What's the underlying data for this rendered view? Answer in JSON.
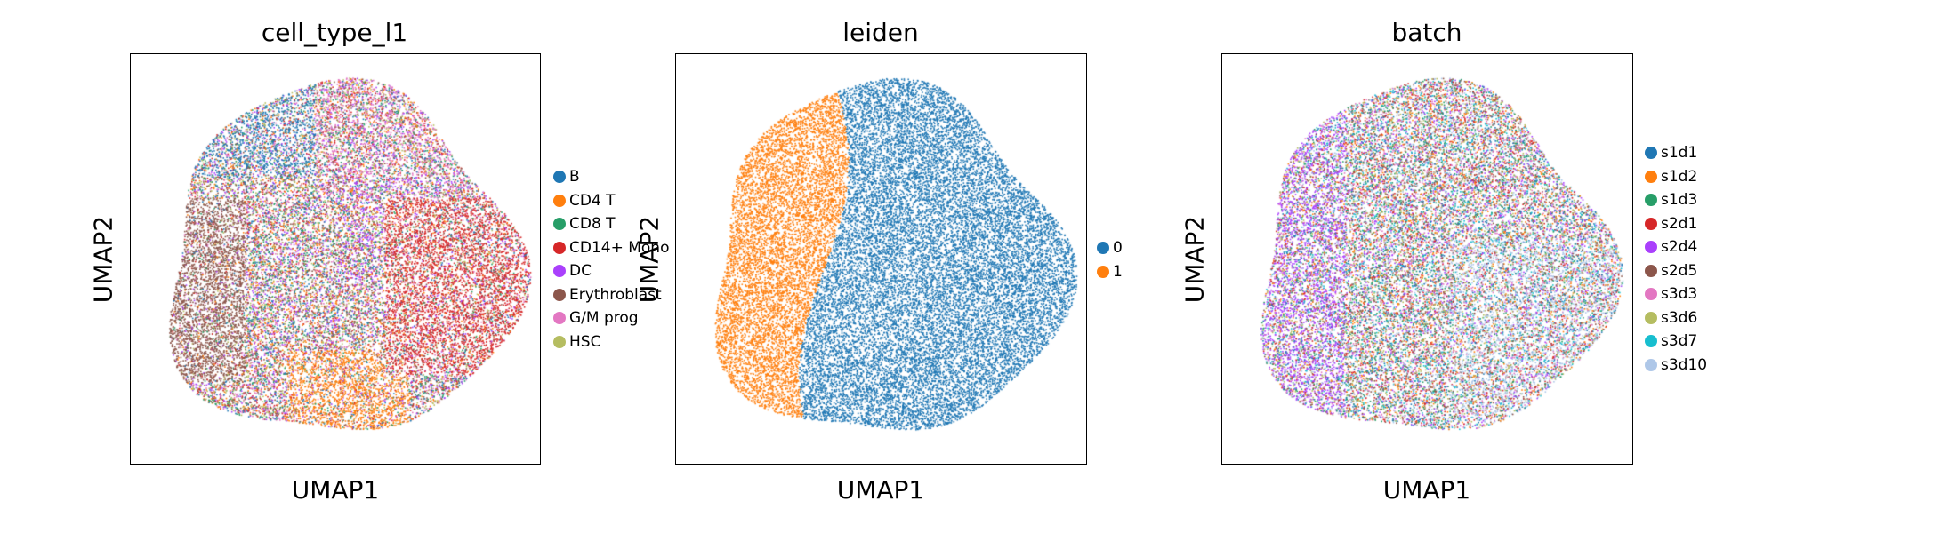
{
  "chart_data": [
    {
      "type": "scatter",
      "title": "cell_type_l1",
      "xlabel": "UMAP1",
      "ylabel": "UMAP2",
      "legend_placement": "right",
      "grid": false,
      "legend": [
        {
          "label": "B",
          "color": "#1f77b4"
        },
        {
          "label": "CD4 T",
          "color": "#ff7f0e"
        },
        {
          "label": "CD8 T",
          "color": "#279e68"
        },
        {
          "label": "CD14+ Mono",
          "color": "#d62728"
        },
        {
          "label": "DC",
          "color": "#aa40fc"
        },
        {
          "label": "Erythroblast",
          "color": "#8c564b"
        },
        {
          "label": "G/M prog",
          "color": "#e377c2"
        },
        {
          "label": "HSC",
          "color": "#b5bd61"
        }
      ]
    },
    {
      "type": "scatter",
      "title": "leiden",
      "xlabel": "UMAP1",
      "ylabel": "UMAP2",
      "legend_placement": "right",
      "grid": false,
      "legend": [
        {
          "label": "0",
          "color": "#1f77b4"
        },
        {
          "label": "1",
          "color": "#ff7f0e"
        }
      ]
    },
    {
      "type": "scatter",
      "title": "batch",
      "xlabel": "UMAP1",
      "ylabel": "UMAP2",
      "legend_placement": "right",
      "grid": false,
      "legend": [
        {
          "label": "s1d1",
          "color": "#1f77b4"
        },
        {
          "label": "s1d2",
          "color": "#ff7f0e"
        },
        {
          "label": "s1d3",
          "color": "#279e68"
        },
        {
          "label": "s2d1",
          "color": "#d62728"
        },
        {
          "label": "s2d4",
          "color": "#aa40fc"
        },
        {
          "label": "s2d5",
          "color": "#8c564b"
        },
        {
          "label": "s3d3",
          "color": "#e377c2"
        },
        {
          "label": "s3d6",
          "color": "#b5bd61"
        },
        {
          "label": "s3d7",
          "color": "#17becf"
        },
        {
          "label": "s3d10",
          "color": "#aec7e8"
        }
      ]
    }
  ]
}
